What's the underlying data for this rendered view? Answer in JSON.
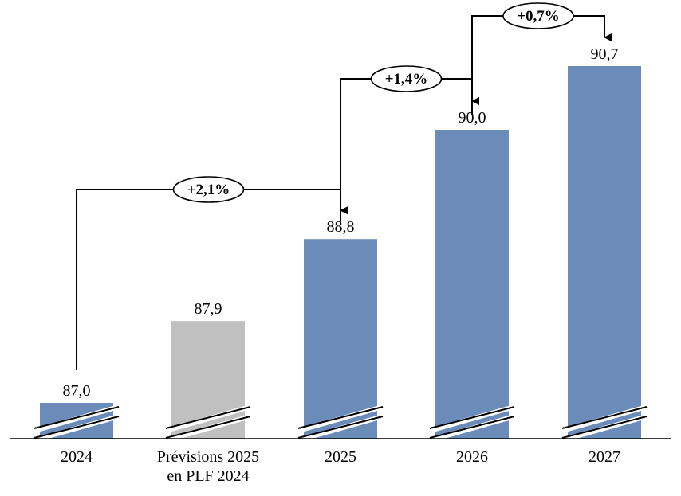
{
  "chart_data": {
    "type": "bar",
    "categories": [
      "2024",
      "Prévisions 2025\nen PLF 2024",
      "2025",
      "2026",
      "2027"
    ],
    "values": [
      87.0,
      87.9,
      88.8,
      90.0,
      90.7
    ],
    "value_labels": [
      "87,0",
      "87,9",
      "88,8",
      "90,0",
      "90,7"
    ],
    "bar_colors": [
      "#6b8cb8",
      "#c0c0c0",
      "#6b8cb8",
      "#6b8cb8",
      "#6b8cb8"
    ],
    "axis_break": true,
    "growth_arrows": [
      {
        "from": 0,
        "to": 2,
        "label": "+2,1%"
      },
      {
        "from": 2,
        "to": 3,
        "label": "+1,4%"
      },
      {
        "from": 3,
        "to": 4,
        "label": "+0,7%"
      }
    ],
    "title": "",
    "xlabel": "",
    "ylabel": "",
    "grid": false
  }
}
